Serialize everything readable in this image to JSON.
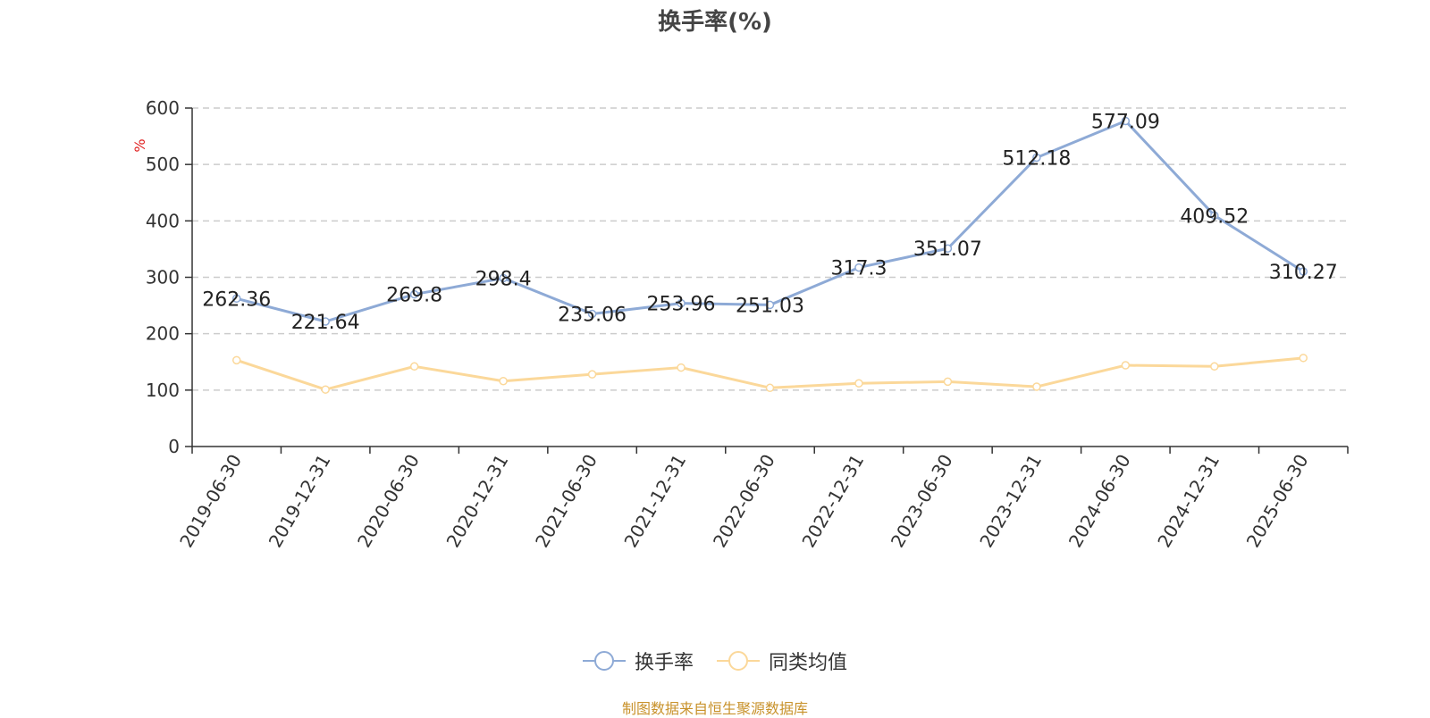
{
  "title": "换手率(%)",
  "source_note": "制图数据来自恒生聚源数据库",
  "chart_data": {
    "type": "line",
    "title": "换手率(%)",
    "ylabel": "%",
    "xlabel": "",
    "ylim": [
      0,
      600
    ],
    "yticks": [
      0,
      100,
      200,
      300,
      400,
      500,
      600
    ],
    "grid": true,
    "legend_position": "bottom",
    "categories": [
      "2019-06-30",
      "2019-12-31",
      "2020-06-30",
      "2020-12-31",
      "2021-06-30",
      "2021-12-31",
      "2022-06-30",
      "2022-12-31",
      "2023-06-30",
      "2023-12-31",
      "2024-06-30",
      "2024-12-31",
      "2025-06-30"
    ],
    "series": [
      {
        "name": "换手率",
        "color": "#8eaad6",
        "show_labels": true,
        "values": [
          262.36,
          221.64,
          269.8,
          298.4,
          235.06,
          253.96,
          251.03,
          317.3,
          351.07,
          512.18,
          577.09,
          409.52,
          310.27
        ],
        "labels": [
          "262.36",
          "221.64",
          "269.8",
          "298.4",
          "235.06",
          "253.96",
          "251.03",
          "317.3",
          "351.07",
          "512.18",
          "577.09",
          "409.52",
          "310.27"
        ]
      },
      {
        "name": "同类均值",
        "color": "#fbd89a",
        "show_labels": false,
        "values": [
          153,
          101,
          142,
          116,
          128,
          140,
          104,
          112,
          115,
          106,
          144,
          142,
          157
        ]
      }
    ]
  },
  "colors": {
    "axis": "#333333",
    "grid": "#cccccc",
    "ylabel": "#e02020",
    "source": "#c8922b"
  }
}
